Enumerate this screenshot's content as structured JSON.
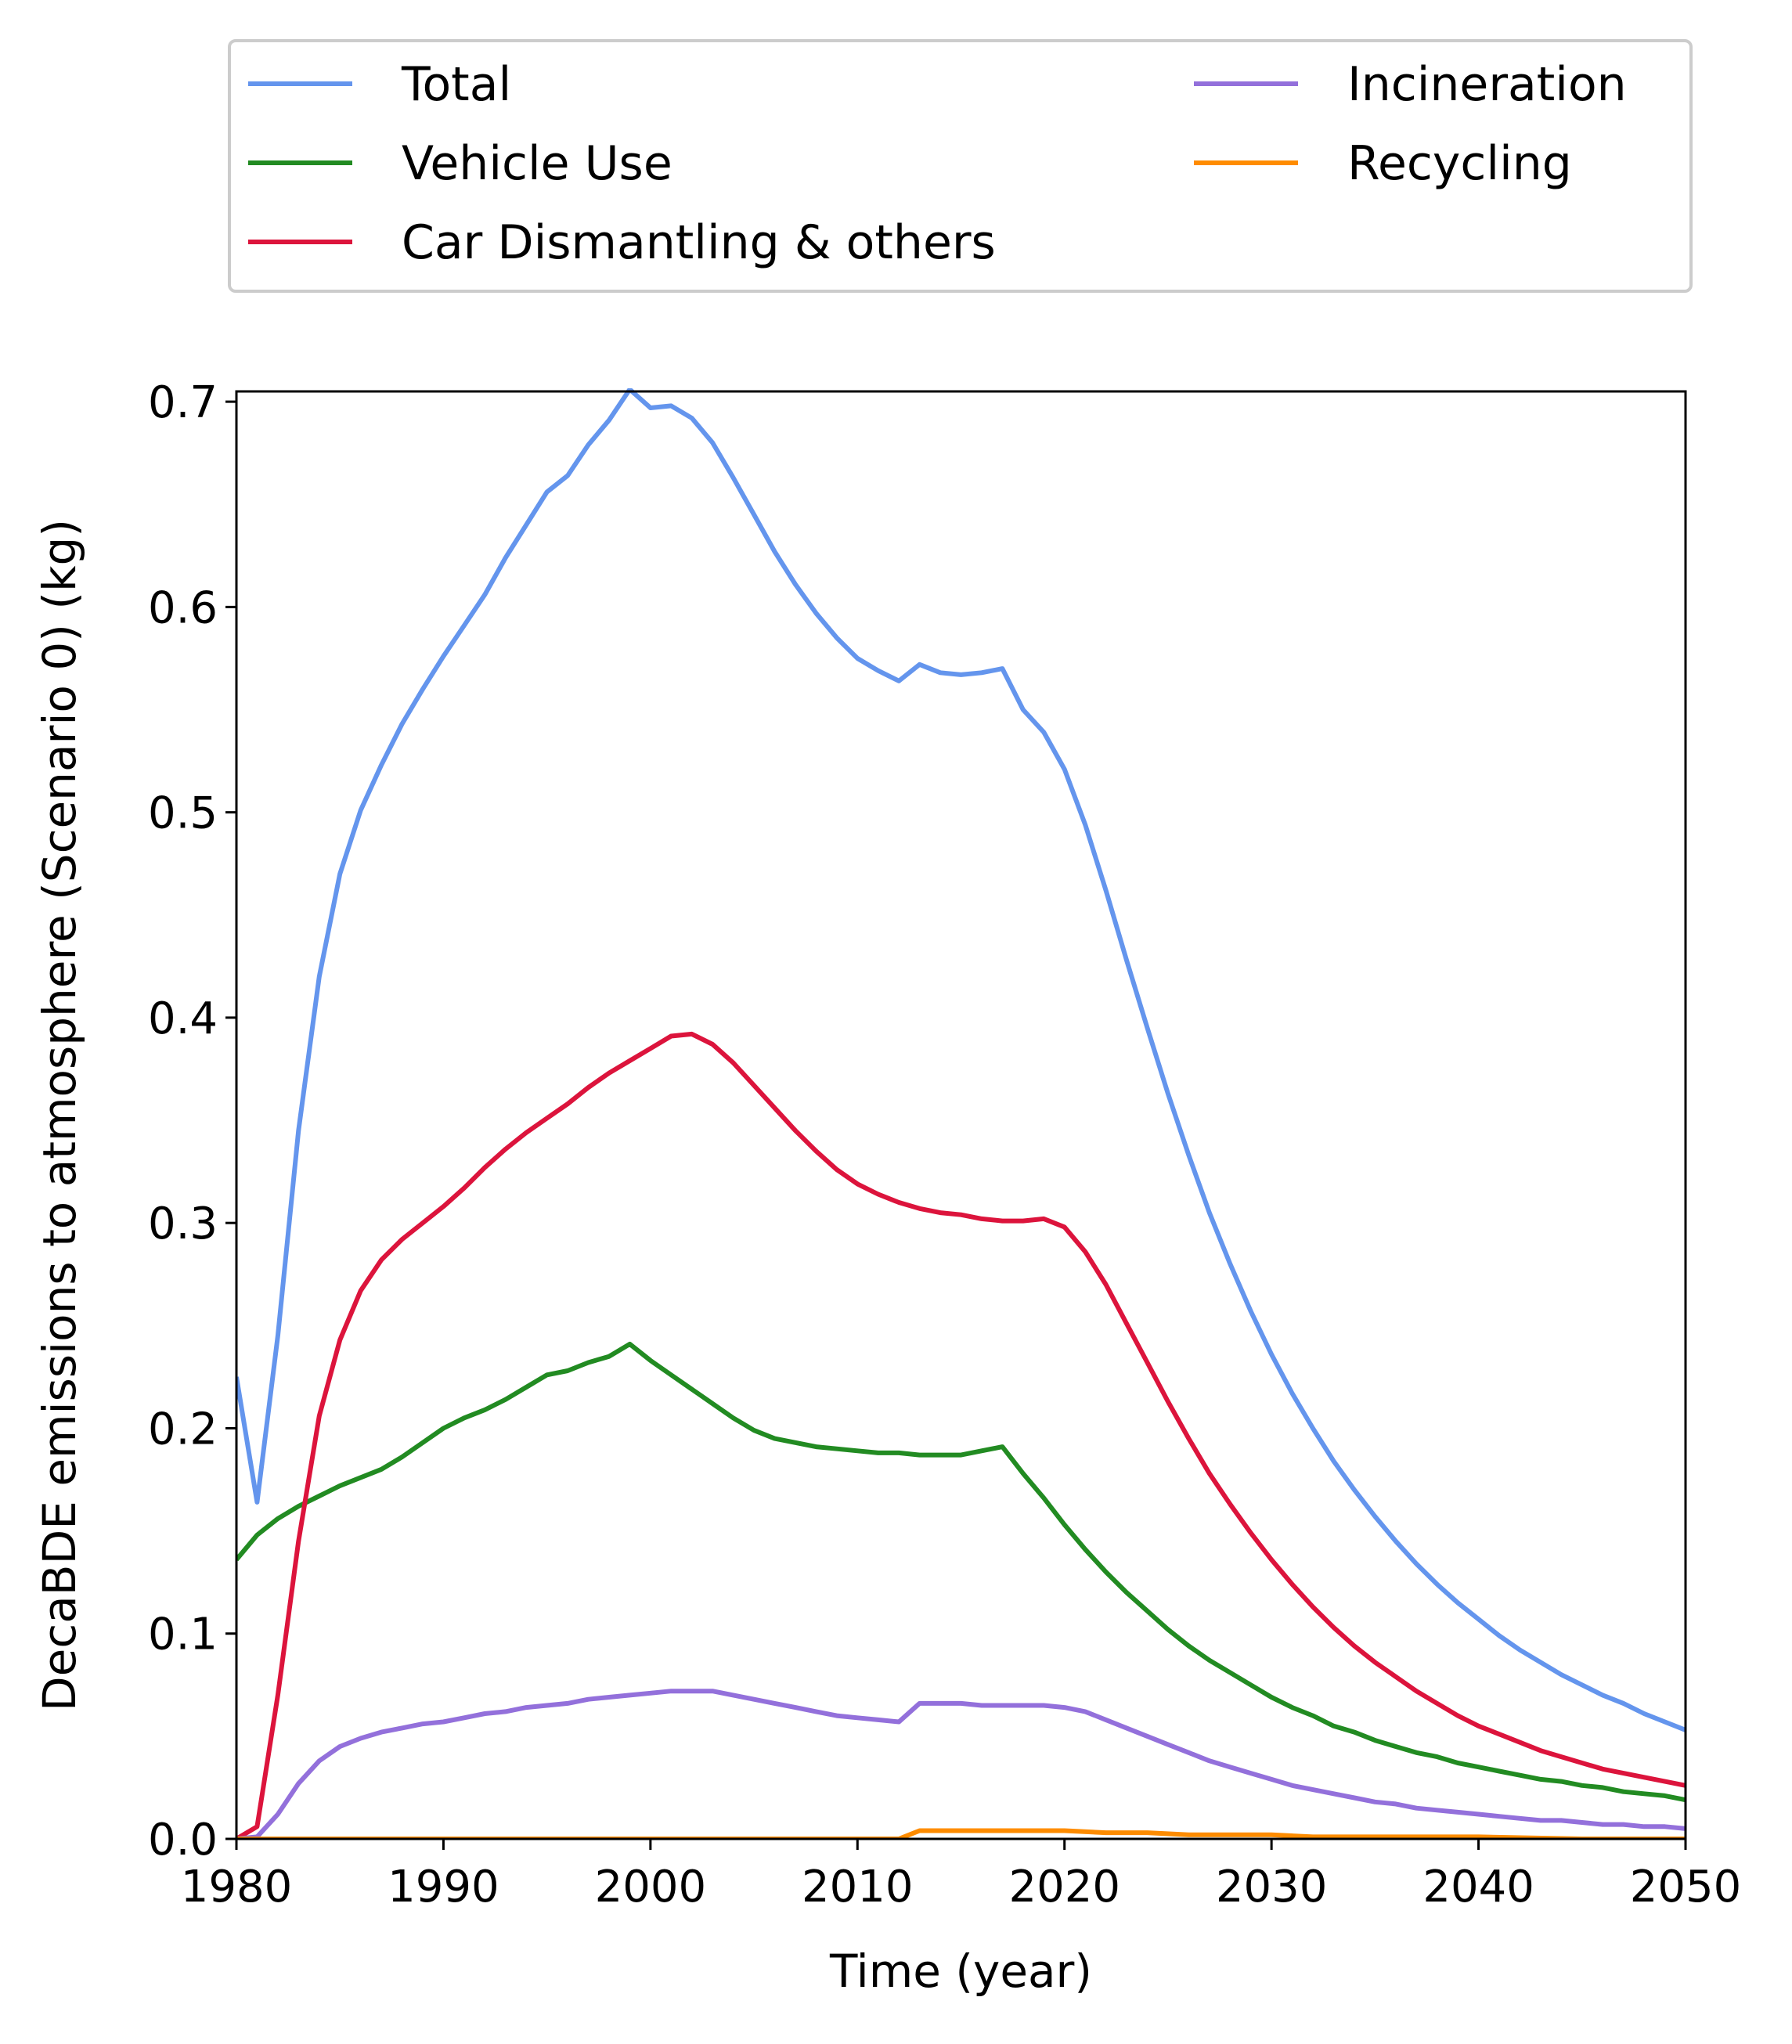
{
  "chart_data": {
    "type": "line",
    "title": "",
    "xlabel": "Time (year)",
    "ylabel": "DecaBDE emissions to atmosphere (Scenario 0) (kg)",
    "xlim": [
      1980,
      2050
    ],
    "ylim": [
      0,
      0.705
    ],
    "xticks": [
      "1980",
      "1990",
      "2000",
      "2010",
      "2020",
      "2030",
      "2040",
      "2050"
    ],
    "yticks": [
      "0.0",
      "0.1",
      "0.2",
      "0.3",
      "0.4",
      "0.5",
      "0.6",
      "0.7"
    ],
    "grid": false,
    "legend_position": "top (above plot), two columns",
    "series": [
      {
        "name": "Total",
        "color": "#6495ED",
        "points": [
          [
            1980,
            0.225
          ],
          [
            1981,
            0.164
          ],
          [
            1982,
            0.245
          ],
          [
            1983,
            0.345
          ],
          [
            1984,
            0.42
          ],
          [
            1985,
            0.47
          ],
          [
            1986,
            0.501
          ],
          [
            1987,
            0.523
          ],
          [
            1988,
            0.543
          ],
          [
            1989,
            0.56
          ],
          [
            1990,
            0.576
          ],
          [
            1991,
            0.591
          ],
          [
            1992,
            0.606
          ],
          [
            1993,
            0.624
          ],
          [
            1994,
            0.64
          ],
          [
            1995,
            0.656
          ],
          [
            1996,
            0.664
          ],
          [
            1997,
            0.679
          ],
          [
            1998,
            0.691
          ],
          [
            1999,
            0.706
          ],
          [
            2000,
            0.697
          ],
          [
            2001,
            0.698
          ],
          [
            2002,
            0.692
          ],
          [
            2003,
            0.68
          ],
          [
            2004,
            0.663
          ],
          [
            2005,
            0.645
          ],
          [
            2006,
            0.627
          ],
          [
            2007,
            0.611
          ],
          [
            2008,
            0.597
          ],
          [
            2009,
            0.585
          ],
          [
            2010,
            0.575
          ],
          [
            2011,
            0.569
          ],
          [
            2012,
            0.564
          ],
          [
            2013,
            0.572
          ],
          [
            2014,
            0.568
          ],
          [
            2015,
            0.567
          ],
          [
            2016,
            0.568
          ],
          [
            2017,
            0.57
          ],
          [
            2018,
            0.55
          ],
          [
            2019,
            0.539
          ],
          [
            2020,
            0.521
          ],
          [
            2021,
            0.494
          ],
          [
            2022,
            0.462
          ],
          [
            2023,
            0.428
          ],
          [
            2024,
            0.395
          ],
          [
            2025,
            0.363
          ],
          [
            2026,
            0.333
          ],
          [
            2027,
            0.305
          ],
          [
            2028,
            0.28
          ],
          [
            2029,
            0.257
          ],
          [
            2030,
            0.236
          ],
          [
            2031,
            0.217
          ],
          [
            2032,
            0.2
          ],
          [
            2033,
            0.184
          ],
          [
            2034,
            0.17
          ],
          [
            2035,
            0.157
          ],
          [
            2036,
            0.145
          ],
          [
            2037,
            0.134
          ],
          [
            2038,
            0.124
          ],
          [
            2039,
            0.115
          ],
          [
            2040,
            0.107
          ],
          [
            2041,
            0.099
          ],
          [
            2042,
            0.092
          ],
          [
            2043,
            0.086
          ],
          [
            2044,
            0.08
          ],
          [
            2045,
            0.075
          ],
          [
            2046,
            0.07
          ],
          [
            2047,
            0.066
          ],
          [
            2048,
            0.061
          ],
          [
            2049,
            0.057
          ],
          [
            2050,
            0.053
          ]
        ]
      },
      {
        "name": "Vehicle Use",
        "color": "#228B22",
        "points": [
          [
            1980,
            0.136
          ],
          [
            1981,
            0.148
          ],
          [
            1982,
            0.156
          ],
          [
            1983,
            0.162
          ],
          [
            1984,
            0.167
          ],
          [
            1985,
            0.172
          ],
          [
            1986,
            0.176
          ],
          [
            1987,
            0.18
          ],
          [
            1988,
            0.186
          ],
          [
            1989,
            0.193
          ],
          [
            1990,
            0.2
          ],
          [
            1991,
            0.205
          ],
          [
            1992,
            0.209
          ],
          [
            1993,
            0.214
          ],
          [
            1994,
            0.22
          ],
          [
            1995,
            0.226
          ],
          [
            1996,
            0.228
          ],
          [
            1997,
            0.232
          ],
          [
            1998,
            0.235
          ],
          [
            1999,
            0.241
          ],
          [
            2000,
            0.233
          ],
          [
            2001,
            0.226
          ],
          [
            2002,
            0.219
          ],
          [
            2003,
            0.212
          ],
          [
            2004,
            0.205
          ],
          [
            2005,
            0.199
          ],
          [
            2006,
            0.195
          ],
          [
            2007,
            0.193
          ],
          [
            2008,
            0.191
          ],
          [
            2009,
            0.19
          ],
          [
            2010,
            0.189
          ],
          [
            2011,
            0.188
          ],
          [
            2012,
            0.188
          ],
          [
            2013,
            0.187
          ],
          [
            2014,
            0.187
          ],
          [
            2015,
            0.187
          ],
          [
            2016,
            0.189
          ],
          [
            2017,
            0.191
          ],
          [
            2018,
            0.178
          ],
          [
            2019,
            0.166
          ],
          [
            2020,
            0.153
          ],
          [
            2021,
            0.141
          ],
          [
            2022,
            0.13
          ],
          [
            2023,
            0.12
          ],
          [
            2024,
            0.111
          ],
          [
            2025,
            0.102
          ],
          [
            2026,
            0.094
          ],
          [
            2027,
            0.087
          ],
          [
            2028,
            0.081
          ],
          [
            2029,
            0.075
          ],
          [
            2030,
            0.069
          ],
          [
            2031,
            0.064
          ],
          [
            2032,
            0.06
          ],
          [
            2033,
            0.055
          ],
          [
            2034,
            0.052
          ],
          [
            2035,
            0.048
          ],
          [
            2036,
            0.045
          ],
          [
            2037,
            0.042
          ],
          [
            2038,
            0.04
          ],
          [
            2039,
            0.037
          ],
          [
            2040,
            0.035
          ],
          [
            2041,
            0.033
          ],
          [
            2042,
            0.031
          ],
          [
            2043,
            0.029
          ],
          [
            2044,
            0.028
          ],
          [
            2045,
            0.026
          ],
          [
            2046,
            0.025
          ],
          [
            2047,
            0.023
          ],
          [
            2048,
            0.022
          ],
          [
            2049,
            0.021
          ],
          [
            2050,
            0.019
          ]
        ]
      },
      {
        "name": "Car Dismantling & others",
        "color": "#DC143C",
        "points": [
          [
            1980,
            0.0
          ],
          [
            1981,
            0.006
          ],
          [
            1982,
            0.07
          ],
          [
            1983,
            0.145
          ],
          [
            1984,
            0.206
          ],
          [
            1985,
            0.243
          ],
          [
            1986,
            0.267
          ],
          [
            1987,
            0.282
          ],
          [
            1988,
            0.292
          ],
          [
            1989,
            0.3
          ],
          [
            1990,
            0.308
          ],
          [
            1991,
            0.317
          ],
          [
            1992,
            0.327
          ],
          [
            1993,
            0.336
          ],
          [
            1994,
            0.344
          ],
          [
            1995,
            0.351
          ],
          [
            1996,
            0.358
          ],
          [
            1997,
            0.366
          ],
          [
            1998,
            0.373
          ],
          [
            1999,
            0.379
          ],
          [
            2000,
            0.385
          ],
          [
            2001,
            0.391
          ],
          [
            2002,
            0.392
          ],
          [
            2003,
            0.387
          ],
          [
            2004,
            0.378
          ],
          [
            2005,
            0.367
          ],
          [
            2006,
            0.356
          ],
          [
            2007,
            0.345
          ],
          [
            2008,
            0.335
          ],
          [
            2009,
            0.326
          ],
          [
            2010,
            0.319
          ],
          [
            2011,
            0.314
          ],
          [
            2012,
            0.31
          ],
          [
            2013,
            0.307
          ],
          [
            2014,
            0.305
          ],
          [
            2015,
            0.304
          ],
          [
            2016,
            0.302
          ],
          [
            2017,
            0.301
          ],
          [
            2018,
            0.301
          ],
          [
            2019,
            0.302
          ],
          [
            2020,
            0.298
          ],
          [
            2021,
            0.286
          ],
          [
            2022,
            0.27
          ],
          [
            2023,
            0.251
          ],
          [
            2024,
            0.232
          ],
          [
            2025,
            0.213
          ],
          [
            2026,
            0.195
          ],
          [
            2027,
            0.178
          ],
          [
            2028,
            0.163
          ],
          [
            2029,
            0.149
          ],
          [
            2030,
            0.136
          ],
          [
            2031,
            0.124
          ],
          [
            2032,
            0.113
          ],
          [
            2033,
            0.103
          ],
          [
            2034,
            0.094
          ],
          [
            2035,
            0.086
          ],
          [
            2036,
            0.079
          ],
          [
            2037,
            0.072
          ],
          [
            2038,
            0.066
          ],
          [
            2039,
            0.06
          ],
          [
            2040,
            0.055
          ],
          [
            2041,
            0.051
          ],
          [
            2042,
            0.047
          ],
          [
            2043,
            0.043
          ],
          [
            2044,
            0.04
          ],
          [
            2045,
            0.037
          ],
          [
            2046,
            0.034
          ],
          [
            2047,
            0.032
          ],
          [
            2048,
            0.03
          ],
          [
            2049,
            0.028
          ],
          [
            2050,
            0.026
          ]
        ]
      },
      {
        "name": "Incineration",
        "color": "#9370DB",
        "points": [
          [
            1980,
            0.0
          ],
          [
            1981,
            0.001
          ],
          [
            1982,
            0.012
          ],
          [
            1983,
            0.027
          ],
          [
            1984,
            0.038
          ],
          [
            1985,
            0.045
          ],
          [
            1986,
            0.049
          ],
          [
            1987,
            0.052
          ],
          [
            1988,
            0.054
          ],
          [
            1989,
            0.056
          ],
          [
            1990,
            0.057
          ],
          [
            1991,
            0.059
          ],
          [
            1992,
            0.061
          ],
          [
            1993,
            0.062
          ],
          [
            1994,
            0.064
          ],
          [
            1995,
            0.065
          ],
          [
            1996,
            0.066
          ],
          [
            1997,
            0.068
          ],
          [
            1998,
            0.069
          ],
          [
            1999,
            0.07
          ],
          [
            2000,
            0.071
          ],
          [
            2001,
            0.072
          ],
          [
            2002,
            0.072
          ],
          [
            2003,
            0.072
          ],
          [
            2004,
            0.07
          ],
          [
            2005,
            0.068
          ],
          [
            2006,
            0.066
          ],
          [
            2007,
            0.064
          ],
          [
            2008,
            0.062
          ],
          [
            2009,
            0.06
          ],
          [
            2010,
            0.059
          ],
          [
            2011,
            0.058
          ],
          [
            2012,
            0.057
          ],
          [
            2013,
            0.066
          ],
          [
            2014,
            0.066
          ],
          [
            2015,
            0.066
          ],
          [
            2016,
            0.065
          ],
          [
            2017,
            0.065
          ],
          [
            2018,
            0.065
          ],
          [
            2019,
            0.065
          ],
          [
            2020,
            0.064
          ],
          [
            2021,
            0.062
          ],
          [
            2022,
            0.058
          ],
          [
            2023,
            0.054
          ],
          [
            2024,
            0.05
          ],
          [
            2025,
            0.046
          ],
          [
            2026,
            0.042
          ],
          [
            2027,
            0.038
          ],
          [
            2028,
            0.035
          ],
          [
            2029,
            0.032
          ],
          [
            2030,
            0.029
          ],
          [
            2031,
            0.026
          ],
          [
            2032,
            0.024
          ],
          [
            2033,
            0.022
          ],
          [
            2034,
            0.02
          ],
          [
            2035,
            0.018
          ],
          [
            2036,
            0.017
          ],
          [
            2037,
            0.015
          ],
          [
            2038,
            0.014
          ],
          [
            2039,
            0.013
          ],
          [
            2040,
            0.012
          ],
          [
            2041,
            0.011
          ],
          [
            2042,
            0.01
          ],
          [
            2043,
            0.009
          ],
          [
            2044,
            0.009
          ],
          [
            2045,
            0.008
          ],
          [
            2046,
            0.007
          ],
          [
            2047,
            0.007
          ],
          [
            2048,
            0.006
          ],
          [
            2049,
            0.006
          ],
          [
            2050,
            0.005
          ]
        ]
      },
      {
        "name": "Recycling",
        "color": "#FF8C00",
        "points": [
          [
            1980,
            0.0
          ],
          [
            2012,
            0.0
          ],
          [
            2013,
            0.004
          ],
          [
            2014,
            0.004
          ],
          [
            2015,
            0.004
          ],
          [
            2016,
            0.004
          ],
          [
            2017,
            0.004
          ],
          [
            2018,
            0.004
          ],
          [
            2019,
            0.004
          ],
          [
            2020,
            0.004
          ],
          [
            2022,
            0.003
          ],
          [
            2024,
            0.003
          ],
          [
            2026,
            0.002
          ],
          [
            2028,
            0.002
          ],
          [
            2030,
            0.002
          ],
          [
            2032,
            0.001
          ],
          [
            2035,
            0.001
          ],
          [
            2040,
            0.001
          ],
          [
            2045,
            0.0
          ],
          [
            2050,
            0.0
          ]
        ]
      }
    ]
  }
}
